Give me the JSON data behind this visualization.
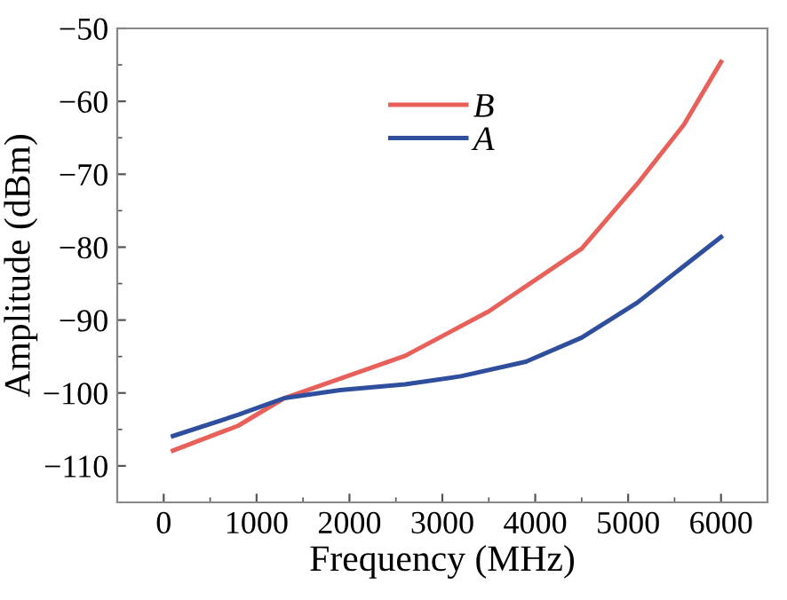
{
  "chart_data": {
    "type": "line",
    "xlabel": "Frequency (MHz)",
    "ylabel": "Amplitude (dBm)",
    "xlim": [
      -500,
      6500
    ],
    "xticks": [
      0,
      1000,
      2000,
      3000,
      4000,
      5000,
      6000
    ],
    "ylim": [
      -115,
      -50
    ],
    "yticks": [
      -110,
      -100,
      -90,
      -80,
      -70,
      -60,
      -50
    ],
    "grid": false,
    "legend": "top",
    "marker": "none",
    "line_style": "solid",
    "series": [
      {
        "name": "B",
        "color": "#e8605a",
        "x": [
          100,
          800,
          1300,
          2600,
          3500,
          4500,
          5100,
          5600,
          6000
        ],
        "values": [
          -107.9,
          -104.5,
          -100.7,
          -94.9,
          -88.8,
          -80.2,
          -71.3,
          -63.2,
          -54.6
        ]
      },
      {
        "name": "A",
        "color": "#2f4f9e",
        "x": [
          100,
          800,
          1300,
          1900,
          2600,
          3200,
          3900,
          4500,
          5100,
          6000
        ],
        "values": [
          -105.9,
          -103,
          -100.7,
          -99.6,
          -98.8,
          -97.7,
          -95.7,
          -92.4,
          -87.6,
          -78.6
        ]
      }
    ]
  }
}
